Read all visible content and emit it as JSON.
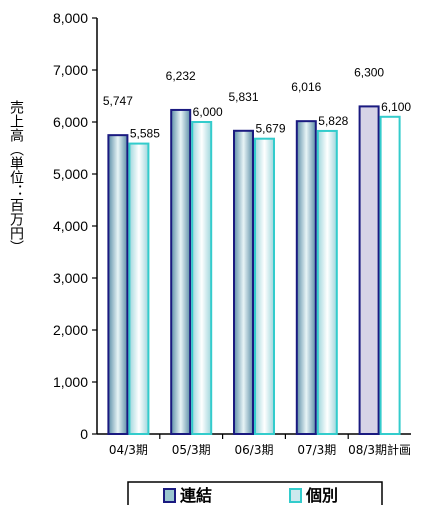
{
  "chart_data": {
    "type": "bar",
    "ylabel": "売上高（単位：百万円）",
    "ylim": [
      0,
      8000
    ],
    "yticks": [
      "0",
      "1,000",
      "2,000",
      "3,000",
      "4,000",
      "5,000",
      "6,000",
      "7,000",
      "8,000"
    ],
    "categories": [
      "04/3期",
      "05/3期",
      "06/3期",
      "07/3期",
      "08/3期計画"
    ],
    "series": [
      {
        "name": "連結",
        "values": [
          5747,
          6232,
          5831,
          6016,
          6300
        ],
        "labels": [
          "5,747",
          "6,232",
          "5,831",
          "6,016",
          "6,300"
        ]
      },
      {
        "name": "個別",
        "values": [
          5585,
          6000,
          5679,
          5828,
          6100
        ],
        "labels": [
          "5,585",
          "6,000",
          "5,679",
          "5,828",
          "6,100"
        ]
      }
    ],
    "legend_position": "bottom",
    "grid": false,
    "colors": {
      "consolidated_edge": "#1a1a80",
      "consolidated_fill": "#9ac6cf",
      "individual_edge": "#33cccc",
      "individual_fill": "#cde9ee",
      "forecast_fill": "#d6d3e6"
    }
  }
}
